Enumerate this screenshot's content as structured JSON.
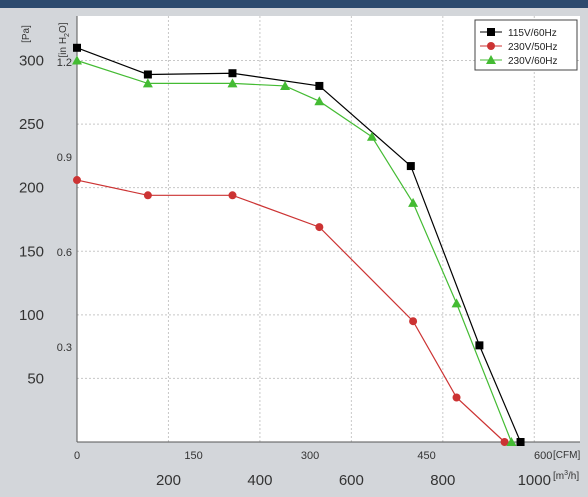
{
  "chart_data": {
    "type": "line",
    "y_left_unit": "[Pa]",
    "y_inner_unit_prefix": "[in H",
    "y_inner_unit_sub": "2",
    "y_inner_unit_suffix": "O]",
    "x_inner_unit": "[CFM]",
    "x_outer_unit_prefix": "[m",
    "x_outer_unit_sup": "3",
    "x_outer_unit_suffix": "/h]",
    "y_pa_ticks": [
      "50",
      "100",
      "150",
      "200",
      "250",
      "300"
    ],
    "y_pa_values": [
      50,
      100,
      150,
      200,
      250,
      300
    ],
    "y_inh2o_ticks": [
      "0.3",
      "0.6",
      "0.9",
      "1.2"
    ],
    "y_inh2o_values": [
      0.3,
      0.6,
      0.9,
      1.2
    ],
    "x_cfm_ticks": [
      "0",
      "150",
      "300",
      "450",
      "600"
    ],
    "x_cfm_values": [
      0,
      150,
      300,
      450,
      600
    ],
    "x_m3h_ticks": [
      "200",
      "400",
      "600",
      "800",
      "1000"
    ],
    "x_m3h_values": [
      200,
      400,
      600,
      800,
      1000
    ],
    "xlim_m3h": [
      0,
      1100
    ],
    "ylim_pa": [
      0,
      335
    ],
    "grid": true,
    "legend_position": "top-right",
    "series": [
      {
        "name": "115V/60Hz",
        "color": "#000000",
        "marker": "square",
        "x_m3h": [
          0,
          155,
          340,
          530,
          730,
          880,
          970
        ],
        "y_pa": [
          310,
          289,
          290,
          280,
          217,
          76,
          0
        ]
      },
      {
        "name": "230V/50Hz",
        "color": "#cc3333",
        "marker": "circle",
        "x_m3h": [
          0,
          155,
          340,
          530,
          735,
          830,
          935
        ],
        "y_pa": [
          206,
          194,
          194,
          169,
          95,
          35,
          0
        ]
      },
      {
        "name": "230V/60Hz",
        "color": "#44bb33",
        "marker": "triangle",
        "x_m3h": [
          0,
          155,
          340,
          455,
          530,
          645,
          735,
          830,
          950
        ],
        "y_pa": [
          300,
          282,
          282,
          280,
          268,
          240,
          188,
          109,
          0
        ]
      }
    ]
  }
}
